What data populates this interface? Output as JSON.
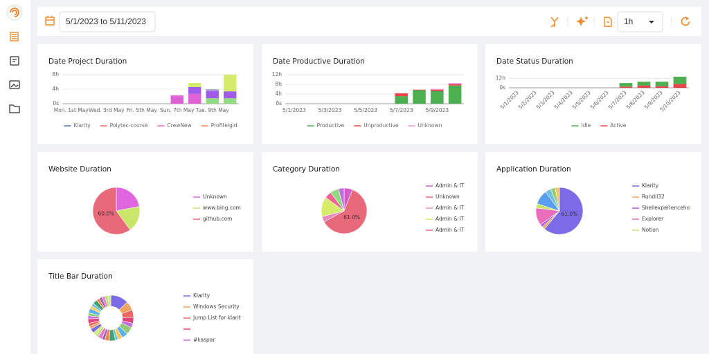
{
  "toolbar": {
    "date_range": "5/1/2023 to 5/11/2023",
    "interval": "1h"
  },
  "chart_data": [
    {
      "type": "bar",
      "stacked": true,
      "title": "Date Project Duration",
      "categories": [
        "Mon. 1st May",
        null,
        "Wed. 3rd May",
        null,
        "Fri. 5th May",
        null,
        "Sun. 7th May",
        null,
        "Tue. 9th May",
        null
      ],
      "series": [
        {
          "name": "Klarity",
          "color": "#5470c6",
          "values": [
            null,
            null,
            null,
            null,
            null,
            null,
            null,
            null,
            null,
            null
          ]
        },
        {
          "name": "Polytec-course",
          "color": "#ee6666",
          "values": [
            null,
            null,
            null,
            null,
            null,
            null,
            null,
            null,
            null,
            null
          ]
        },
        {
          "name": "CrewNew",
          "color": "#e062d6",
          "values": [
            null,
            null,
            null,
            null,
            null,
            null,
            2.3,
            2.7,
            null,
            null
          ]
        },
        {
          "name": "Profitelgid",
          "color": "#fc8452",
          "values": [
            null,
            null,
            null,
            null,
            null,
            null,
            null,
            null,
            null,
            null
          ]
        },
        {
          "color": "#91dc82",
          "values": [
            null,
            null,
            null,
            null,
            null,
            null,
            null,
            null,
            1.5,
            1.5
          ]
        },
        {
          "color": "#a05ce8",
          "values": [
            null,
            null,
            null,
            null,
            null,
            null,
            null,
            1.9,
            2.1,
            1.9
          ]
        },
        {
          "color": "#a8b4c8",
          "values": [
            null,
            null,
            null,
            null,
            null,
            null,
            null,
            null,
            0.4,
            null
          ]
        },
        {
          "color": "#d4ec6a",
          "values": [
            null,
            null,
            null,
            null,
            null,
            null,
            null,
            1.1,
            null,
            4.6
          ]
        }
      ],
      "ylim": [
        0,
        8
      ],
      "yticks": [
        {
          "value": 0,
          "label": "0s"
        },
        {
          "value": 4,
          "label": "4h"
        },
        {
          "value": 8,
          "label": "8h"
        }
      ],
      "grid": true
    },
    {
      "type": "bar",
      "stacked": true,
      "title": "Date Productive Duration",
      "categories": [
        "5/1/2023",
        null,
        "5/3/2023",
        null,
        "5/5/2023",
        null,
        "5/7/2023",
        null,
        "5/9/2023",
        null
      ],
      "series": [
        {
          "name": "Productive",
          "color": "#4caf50",
          "values": [
            null,
            null,
            null,
            null,
            null,
            null,
            3.1,
            5.6,
            5.2,
            7.5
          ]
        },
        {
          "name": "Unproductive",
          "color": "#e8454a",
          "values": [
            null,
            null,
            null,
            null,
            null,
            null,
            1.2,
            0.2,
            0.6,
            0.5
          ]
        },
        {
          "name": "Unknown",
          "color": "#e690d1",
          "values": [
            null,
            null,
            null,
            null,
            null,
            null,
            null,
            null,
            0.3,
            0.5
          ]
        }
      ],
      "ylim": [
        0,
        12
      ],
      "yticks": [
        {
          "value": 0,
          "label": "0s"
        },
        {
          "value": 4,
          "label": "4h"
        },
        {
          "value": 8,
          "label": "8h"
        },
        {
          "value": 12,
          "label": "12h"
        }
      ],
      "grid": true
    },
    {
      "type": "bar",
      "stacked": true,
      "title": "Date Status Duration",
      "categories": [
        "5/1/2023",
        "5/2/2023",
        "5/3/2023",
        "5/4/2023",
        "5/5/2023",
        "5/6/2023",
        "5/7/2023",
        "5/8/2023",
        "5/9/2023",
        "5/10/2023"
      ],
      "series": [
        {
          "name": "Active",
          "color": "#e8454a",
          "values": [
            null,
            null,
            null,
            null,
            null,
            null,
            1.5,
            3,
            2,
            5
          ]
        },
        {
          "name": "Idle",
          "color": "#4caf50",
          "values": [
            null,
            null,
            null,
            null,
            null,
            null,
            4.5,
            4.7,
            5.7,
            9
          ]
        }
      ],
      "legend_order": [
        1,
        0
      ],
      "ylim": [
        0,
        14
      ],
      "yticks": [
        {
          "value": 0,
          "label": "0s"
        },
        {
          "value": 12,
          "label": "12h"
        }
      ],
      "grid": true
    },
    {
      "type": "pie",
      "title": "Website Duration",
      "categories": [
        "Unknown",
        "www.bing.com",
        "github.com"
      ],
      "values": [
        22,
        18,
        60
      ],
      "value_labels": [
        null,
        null,
        "60.0%"
      ],
      "colors": [
        "#e066e0",
        "#c9e66a",
        "#e8697a"
      ]
    },
    {
      "type": "pie",
      "title": "Category Duration",
      "categories": [
        "Admin & IT",
        "Unknown",
        "Admin & IT",
        "Admin & IT",
        "Admin & IT",
        null,
        null
      ],
      "values": [
        6,
        61,
        4,
        14,
        5,
        6,
        4
      ],
      "value_labels": [
        null,
        "61.0%",
        null,
        null,
        null,
        null,
        null
      ],
      "colors": [
        "#d65cc9",
        "#e8697a",
        "#e98ac0",
        "#d6ec6a",
        "#f06292",
        "#91dc82",
        "#c46ce0"
      ]
    },
    {
      "type": "pie",
      "title": "Application Duration",
      "categories": [
        "Klarity",
        "Rundll32",
        "Shellexperienceho",
        "Explorer",
        "Notion",
        null,
        null,
        null,
        null
      ],
      "values": [
        61,
        2,
        2,
        12,
        3,
        10,
        4,
        3,
        3
      ],
      "value_labels": [
        "61.0%",
        null,
        null,
        null,
        null,
        null,
        null,
        null,
        null
      ],
      "colors": [
        "#7b6be6",
        "#f0a35e",
        "#b05ce0",
        "#e96dbb",
        "#c9e66a",
        "#5a9ef0",
        "#73c0de",
        "#91cc75",
        "#fac858"
      ]
    },
    {
      "type": "donut",
      "title": "Title Bar Duration",
      "categories": [
        "Klarity",
        "Windows Security",
        "Jump List for klarit",
        null,
        "#kaspar",
        null,
        null,
        null,
        null,
        null,
        null,
        null,
        null,
        null,
        null,
        null,
        null,
        null,
        null,
        null,
        null,
        null,
        null,
        null,
        null,
        null,
        null,
        null,
        null,
        null
      ],
      "values": [
        12,
        6,
        5,
        4,
        3,
        5,
        4,
        3,
        2,
        4,
        3,
        2,
        3,
        2,
        2,
        3,
        2,
        2,
        3,
        2,
        2,
        3,
        2,
        2,
        3,
        2,
        2,
        2,
        2,
        2
      ],
      "colors": [
        "#7b6be6",
        "#f0a35e",
        "#ee6666",
        "#e0427a",
        "#c46ce0",
        "#91cc75",
        "#5ab1ef",
        "#fac858",
        "#73c0de",
        "#3ba272",
        "#fc8452",
        "#9a60b4",
        "#ea7ccc",
        "#b6e08a",
        "#d4ec6a",
        "#7b6be6",
        "#f0a35e",
        "#ee6666",
        "#e0427a",
        "#c46ce0",
        "#91cc75",
        "#5ab1ef",
        "#fac858",
        "#73c0de",
        "#3ba272",
        "#fc8452",
        "#9a60b4",
        "#ea7ccc",
        "#b6e08a",
        "#d4ec6a"
      ]
    }
  ]
}
